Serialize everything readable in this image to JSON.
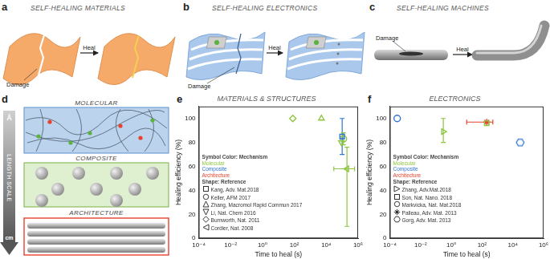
{
  "panels": {
    "a": {
      "label": "a",
      "title": "SELF-HEALING MATERIALS",
      "damage": "Damage",
      "heal": "Heal"
    },
    "b": {
      "label": "b",
      "title": "SELF-HEALING ELECTRONICS",
      "damage": "Damage",
      "heal": "Heal"
    },
    "c": {
      "label": "c",
      "title": "SELF-HEALING MACHINES",
      "damage": "Damage",
      "heal": "Heal"
    },
    "d": {
      "label": "d",
      "scale_top": "Å",
      "scale_label": "LENGTH SCALE",
      "scale_bottom": "cm",
      "levels": [
        "MOLECULAR",
        "COMPOSITE",
        "ARCHITECTURE"
      ]
    },
    "e": {
      "label": "e"
    },
    "f": {
      "label": "f"
    }
  },
  "chart_data": [
    {
      "type": "scatter",
      "title": "MATERIALS & STRUCTURES",
      "x_label": "Time to heal (s)",
      "y_label": "Healing efficiency (%)",
      "log": "x",
      "grid": false,
      "xlim": [
        0.0001,
        1000000
      ],
      "xticks": [
        {
          "value": 0.0001,
          "label": "10⁻⁴"
        },
        {
          "value": 0.01,
          "label": "10⁻²"
        },
        {
          "value": 1,
          "label": "10⁰"
        },
        {
          "value": 100,
          "label": "10²"
        },
        {
          "value": 10000,
          "label": "10⁴"
        },
        {
          "value": 1000000,
          "label": "10⁶"
        }
      ],
      "ylim": [
        0,
        110
      ],
      "yticks": [
        0,
        20,
        40,
        60,
        80,
        100
      ],
      "mechanism_title": "Symbol Color: Mechanism",
      "mechanisms": [
        {
          "name": "Molecular",
          "color": "#8dc63f"
        },
        {
          "name": "Composite",
          "color": "#2f74d0"
        },
        {
          "name": "Architecture",
          "color": "#e8412c"
        }
      ],
      "reference_title": "Shape: Reference",
      "series": [
        {
          "name": "Kang, Adv. Mat.2018",
          "marker": "square",
          "color": "#2f74d0",
          "x": [
            100000
          ],
          "values": [
            85
          ],
          "y_low": [
            70
          ],
          "y_high": [
            100
          ],
          "x_low": [
            null
          ],
          "x_high": [
            null
          ]
        },
        {
          "name": "Keller, AFM 2017",
          "marker": "circle",
          "color": "#8dc63f",
          "x": [
            120000
          ],
          "values": [
            83
          ],
          "y_low": [
            78
          ],
          "y_high": [
            88
          ],
          "x_low": [
            null
          ],
          "x_high": [
            null
          ]
        },
        {
          "name": "Zhang, Macromol Rapid Commun 2017",
          "marker": "triangle-up",
          "color": "#8dc63f",
          "x": [
            5000
          ],
          "values": [
            100
          ],
          "y_low": [
            null
          ],
          "y_high": [
            null
          ],
          "x_low": [
            null
          ],
          "x_high": [
            null
          ]
        },
        {
          "name": "Li, Nat. Chem 2016",
          "marker": "triangle-down",
          "color": "#8dc63f",
          "x": [
            90000
          ],
          "values": [
            80
          ],
          "y_low": [
            null
          ],
          "y_high": [
            null
          ],
          "x_low": [
            null
          ],
          "x_high": [
            null
          ]
        },
        {
          "name": "Burnworth, Nat. 2011",
          "marker": "diamond",
          "color": "#8dc63f",
          "x": [
            80
          ],
          "values": [
            100
          ],
          "y_low": [
            null
          ],
          "y_high": [
            null
          ],
          "x_low": [
            null
          ],
          "x_high": [
            null
          ]
        },
        {
          "name": "Cordier, Nat. 2008",
          "marker": "triangle-left",
          "color": "#8dc63f",
          "x": [
            200000
          ],
          "values": [
            58
          ],
          "y_low": [
            10
          ],
          "y_high": [
            76
          ],
          "x_low": [
            30000
          ],
          "x_high": [
            600000
          ]
        }
      ]
    },
    {
      "type": "scatter",
      "title": "ELECTRONICS",
      "x_label": "Time to heal (s)",
      "y_label": "Healing efficiency (%)",
      "log": "x",
      "grid": false,
      "xlim": [
        0.0001,
        1000000
      ],
      "xticks": [
        {
          "value": 0.0001,
          "label": "10⁻⁴"
        },
        {
          "value": 0.01,
          "label": "10⁻²"
        },
        {
          "value": 1,
          "label": "10⁰"
        },
        {
          "value": 100,
          "label": "10²"
        },
        {
          "value": 10000,
          "label": "10⁴"
        },
        {
          "value": 1000000,
          "label": "10⁶"
        }
      ],
      "ylim": [
        0,
        110
      ],
      "yticks": [
        0,
        20,
        40,
        60,
        80,
        100
      ],
      "mechanism_title": "Symbol Color: Mechanism",
      "mechanisms": [
        {
          "name": "Molecular",
          "color": "#8dc63f"
        },
        {
          "name": "Composite",
          "color": "#2f74d0"
        },
        {
          "name": "Architecture",
          "color": "#e8412c"
        }
      ],
      "reference_title": "Shape: Reference",
      "series": [
        {
          "name": "Zhang, Adv.Mat.2018",
          "marker": "triangle-right",
          "color": "#8dc63f",
          "x": [
            0.3
          ],
          "values": [
            89
          ],
          "y_low": [
            80
          ],
          "y_high": [
            100
          ],
          "x_low": [
            null
          ],
          "x_high": [
            null
          ]
        },
        {
          "name": "Son, Nat. Nano. 2018",
          "marker": "square",
          "color": "#8dc63f",
          "x": [
            200
          ],
          "values": [
            96
          ],
          "y_low": [
            null
          ],
          "y_high": [
            null
          ],
          "x_low": [
            null
          ],
          "x_high": [
            null
          ]
        },
        {
          "name": "Markvicka, Nat. Mat.2018",
          "marker": "circle",
          "color": "#2f74d0",
          "x": [
            0.0003
          ],
          "values": [
            100
          ],
          "y_low": [
            null
          ],
          "y_high": [
            null
          ],
          "x_low": [
            null
          ],
          "x_high": [
            null
          ]
        },
        {
          "name": "Palleau, Adv. Mat. 2013",
          "marker": "star",
          "color": "#e8412c",
          "x": [
            200
          ],
          "values": [
            97
          ],
          "y_low": [
            null
          ],
          "y_high": [
            null
          ],
          "x_low": [
            10
          ],
          "x_high": [
            500
          ]
        },
        {
          "name": "Gorg, Adv. Mat. 2013",
          "marker": "hexagon",
          "color": "#2f74d0",
          "x": [
            30000
          ],
          "values": [
            80
          ],
          "y_low": [
            null
          ],
          "y_high": [
            null
          ],
          "x_low": [
            null
          ],
          "x_high": [
            null
          ]
        }
      ]
    }
  ]
}
